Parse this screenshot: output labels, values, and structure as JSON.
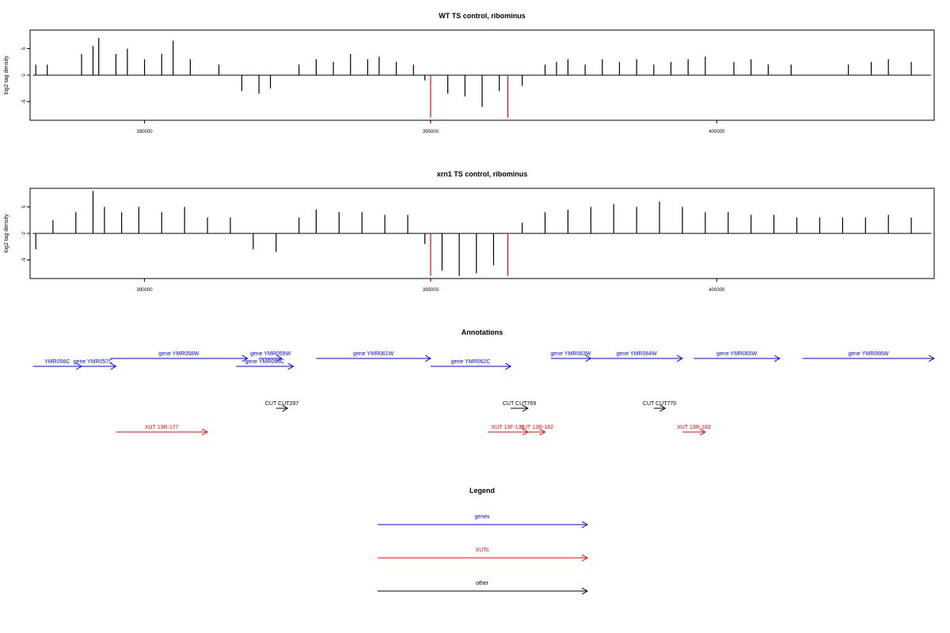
{
  "chart_data": [
    {
      "type": "bar",
      "title": "WT TS control, ribominus",
      "ylabel": "log2 tag density",
      "xlabel": "",
      "xlim": [
        388000,
        403800
      ],
      "ylim": [
        -8.5,
        8.5
      ],
      "xticks": [
        390000,
        395000,
        400000
      ],
      "xtick_labels": [
        "390000",
        "395000",
        "400000"
      ],
      "yticks": [
        5,
        0,
        -5
      ],
      "ytick_labels": [
        "5",
        "0",
        "-5"
      ],
      "baseline": {
        "x": [
          388050,
          403750
        ],
        "y": 0
      },
      "series": [
        {
          "color": "#000000",
          "x": [
            388100,
            388300,
            388900,
            389100,
            389200,
            389500,
            389700,
            390000,
            390300,
            390500,
            390800,
            391300,
            391700,
            392000,
            392200,
            392700,
            393000,
            393300,
            393600,
            393900,
            394100,
            394400,
            394700,
            394900,
            395300,
            395600,
            395900,
            396200,
            396600,
            397000,
            397200,
            397400,
            397700,
            398000,
            398300,
            398600,
            398900,
            399200,
            399500,
            399800,
            400300,
            400600,
            400900,
            401300,
            402300,
            402700,
            403000,
            403400
          ],
          "y": [
            2,
            2,
            4,
            5.5,
            7,
            4,
            5,
            3,
            4,
            6.5,
            3,
            2,
            -3,
            -3.5,
            -2.5,
            2,
            3,
            2.5,
            4,
            3,
            3.5,
            2.5,
            2,
            -1,
            -3.5,
            -4,
            -6,
            -3,
            -2,
            2,
            2.5,
            3,
            2,
            3,
            2.5,
            3,
            2,
            2.5,
            3,
            3.5,
            2.5,
            3,
            2,
            2,
            2,
            2.5,
            3,
            2.5
          ]
        },
        {
          "color": "#ff0000",
          "x": [
            395000,
            396350
          ],
          "y": [
            -8,
            -8
          ]
        }
      ]
    },
    {
      "type": "bar",
      "title": "xrn1 TS control, ribominus",
      "ylabel": "log2 tag density",
      "xlabel": "",
      "xlim": [
        388000,
        403800
      ],
      "ylim": [
        -8.5,
        8.5
      ],
      "xticks": [
        390000,
        395000,
        400000
      ],
      "xtick_labels": [
        "390000",
        "395000",
        "400000"
      ],
      "yticks": [
        5,
        0,
        -5
      ],
      "ytick_labels": [
        "5",
        "0",
        "-5"
      ],
      "baseline": {
        "x": [
          388050,
          403750
        ],
        "y": 0
      },
      "series": [
        {
          "color": "#000000",
          "x": [
            388100,
            388400,
            388800,
            389100,
            389300,
            389600,
            389900,
            390300,
            390700,
            391100,
            391500,
            391900,
            392300,
            392700,
            393000,
            393400,
            393800,
            394200,
            394600,
            394900,
            395200,
            395500,
            395800,
            396100,
            396600,
            397000,
            397400,
            397800,
            398200,
            398600,
            399000,
            399400,
            399800,
            400200,
            400600,
            401000,
            401400,
            401800,
            402200,
            402600,
            403000,
            403400
          ],
          "y": [
            -3,
            2.5,
            4,
            8,
            5,
            4,
            5,
            4,
            5,
            3,
            3,
            -3,
            -3.5,
            3,
            4.5,
            4,
            4,
            3.5,
            3.5,
            -2,
            -7,
            -8,
            -7.5,
            -6,
            2,
            4,
            4.5,
            5,
            5.5,
            5,
            6,
            5,
            4,
            4,
            3.5,
            3.5,
            3,
            3,
            3,
            3,
            3.5,
            3
          ]
        },
        {
          "color": "#ff0000",
          "x": [
            395000,
            396350
          ],
          "y": [
            -8,
            -8
          ]
        }
      ]
    }
  ],
  "annotations": {
    "title": "Annotations",
    "genes": [
      {
        "label": "YMR056C",
        "start": 388050,
        "end": 388900,
        "row": 2
      },
      {
        "label": "gene YMR057C",
        "start": 388700,
        "end": 389500,
        "row": 2
      },
      {
        "label": "gene YMR058W",
        "start": 389400,
        "end": 391800,
        "row": 1
      },
      {
        "label": "gene YMR059W",
        "start": 392000,
        "end": 392400,
        "row": 1
      },
      {
        "label": "gene YMR060C",
        "start": 391600,
        "end": 392600,
        "row": 2
      },
      {
        "label": "gene YMR061W",
        "start": 393000,
        "end": 395000,
        "row": 1
      },
      {
        "label": "gene YMR062C",
        "start": 395000,
        "end": 396400,
        "row": 2
      },
      {
        "label": "gene YMR063W",
        "start": 397100,
        "end": 397800,
        "row": 1
      },
      {
        "label": "gene YMR064W",
        "start": 397800,
        "end": 399400,
        "row": 1
      },
      {
        "label": "gene YMR065W",
        "start": 399600,
        "end": 401100,
        "row": 1
      },
      {
        "label": "gene YMR066W",
        "start": 401500,
        "end": 403800,
        "row": 1
      }
    ],
    "cuts": [
      {
        "label": "CUT CUT297",
        "start": 392300,
        "end": 392500
      },
      {
        "label": "CUT CUT769",
        "start": 396400,
        "end": 396700
      },
      {
        "label": "CUT CUT770",
        "start": 398900,
        "end": 399100
      }
    ],
    "xuts": [
      {
        "label": "XUT 13R-177",
        "start": 389500,
        "end": 391100
      },
      {
        "label": "XUT 13F-179",
        "start": 396000,
        "end": 396700
      },
      {
        "label": "XUT 13R-182",
        "start": 396700,
        "end": 397000
      },
      {
        "label": "XUT 13R-183",
        "start": 399400,
        "end": 399800
      }
    ]
  },
  "legend": {
    "title": "Legend",
    "items": [
      {
        "label": "genes",
        "color": "#0000ff"
      },
      {
        "label": "XUTs",
        "color": "#ff0000"
      },
      {
        "label": "other",
        "color": "#000000"
      }
    ]
  }
}
